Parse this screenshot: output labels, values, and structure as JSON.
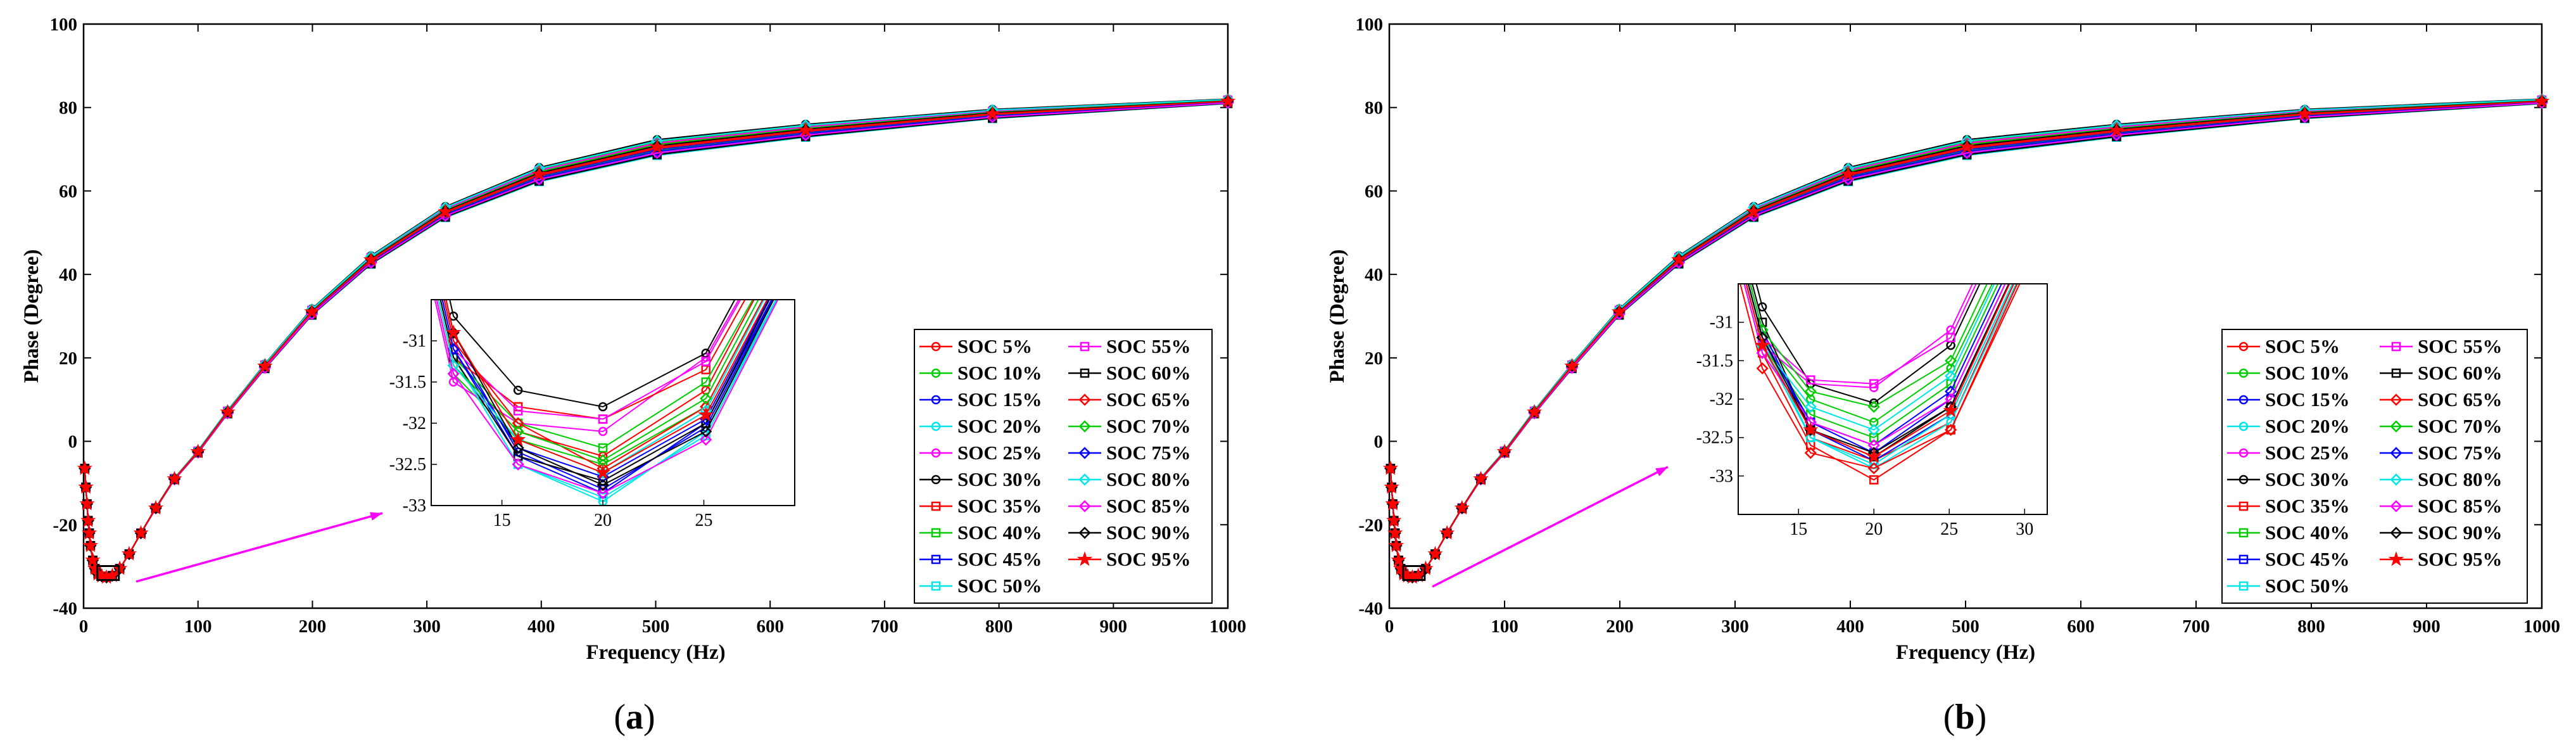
{
  "chart_data": [
    {
      "type": "line",
      "panel_label": "(a)",
      "panel_letter": "a",
      "title": "",
      "xlabel": "Frequency (Hz)",
      "ylabel": "Phase (Degree)",
      "xlim": [
        0,
        1000
      ],
      "ylim": [
        -40,
        100
      ],
      "xticks": [
        0,
        100,
        200,
        300,
        400,
        500,
        600,
        700,
        800,
        900,
        1000
      ],
      "yticks": [
        -40,
        -20,
        0,
        20,
        40,
        60,
        80,
        100
      ],
      "x": [
        1,
        2,
        3,
        4,
        5,
        6,
        8,
        10,
        12.6,
        15.8,
        20,
        25.1,
        31.6,
        39.8,
        50.1,
        63.1,
        79.4,
        100,
        125.9,
        158.5,
        199.5,
        251.2,
        316.2,
        398.1,
        501.2,
        631,
        794.3,
        1000
      ],
      "base_y": [
        -6.5,
        -11,
        -15,
        -19,
        -22,
        -25,
        -28.5,
        -30.5,
        -31.8,
        -32.3,
        -32.6,
        -32.2,
        -30.5,
        -27,
        -22,
        -16,
        -9,
        -2.5,
        7,
        18,
        31,
        43.5,
        55,
        64,
        70.5,
        74.5,
        78.5,
        81.5
      ],
      "series": [
        {
          "name": "SOC 5%",
          "color": "#ff0000",
          "marker": "circle",
          "offset": 0.8
        },
        {
          "name": "SOC 10%",
          "color": "#00cc00",
          "marker": "circle",
          "offset": 1.3
        },
        {
          "name": "SOC 15%",
          "color": "#0000ff",
          "marker": "circle",
          "offset": -0.6
        },
        {
          "name": "SOC 20%",
          "color": "#00e5e5",
          "marker": "circle",
          "offset": -1.2
        },
        {
          "name": "SOC 25%",
          "color": "#ff00ff",
          "marker": "circle",
          "offset": 0.2
        },
        {
          "name": "SOC 30%",
          "color": "#000000",
          "marker": "circle",
          "offset": 1.8
        },
        {
          "name": "SOC 35%",
          "color": "#ff0000",
          "marker": "square",
          "offset": 0.5
        },
        {
          "name": "SOC 40%",
          "color": "#00cc00",
          "marker": "square",
          "offset": -0.9
        },
        {
          "name": "SOC 45%",
          "color": "#0000ff",
          "marker": "square",
          "offset": -1.6
        },
        {
          "name": "SOC 50%",
          "color": "#00e5e5",
          "marker": "square",
          "offset": -2.0
        },
        {
          "name": "SOC 55%",
          "color": "#ff00ff",
          "marker": "square",
          "offset": 1.0
        },
        {
          "name": "SOC 60%",
          "color": "#000000",
          "marker": "square",
          "offset": -1.8
        },
        {
          "name": "SOC 65%",
          "color": "#ff0000",
          "marker": "diamond",
          "offset": -0.3
        },
        {
          "name": "SOC 70%",
          "color": "#00cc00",
          "marker": "diamond",
          "offset": 0.6
        },
        {
          "name": "SOC 75%",
          "color": "#0000ff",
          "marker": "diamond",
          "offset": -1.0
        },
        {
          "name": "SOC 80%",
          "color": "#00e5e5",
          "marker": "diamond",
          "offset": 1.5
        },
        {
          "name": "SOC 85%",
          "color": "#ff00ff",
          "marker": "diamond",
          "offset": -1.4
        },
        {
          "name": "SOC 90%",
          "color": "#000000",
          "marker": "diamond",
          "offset": 0.3
        },
        {
          "name": "SOC 95%",
          "color": "#ff0000",
          "marker": "star",
          "offset": 0.0
        }
      ],
      "legend_location": "lower-right, two columns",
      "inset": {
        "xlim": [
          11.5,
          29.5
        ],
        "ylim": [
          -33,
          -30.5
        ],
        "xticks": [
          15,
          20,
          25
        ],
        "yticks": [
          -33,
          -32.5,
          -32,
          -31.5,
          -31
        ],
        "zoom_region_x": [
          12,
          25
        ],
        "zoom_region_y": [
          -33,
          -31.5
        ],
        "x": [
          12.6,
          15.8,
          20,
          25.1,
          31.6
        ],
        "series_y": [
          [
            -31.3,
            -32.1,
            -32.4,
            -31.6,
            -28.6
          ],
          [
            -31.4,
            -32.2,
            -32.5,
            -31.8,
            -28.8
          ],
          [
            -31.0,
            -32.35,
            -32.8,
            -32.05,
            -29.0
          ],
          [
            -31.2,
            -32.5,
            -32.95,
            -32.1,
            -29.1
          ],
          [
            -31.5,
            -32.0,
            -32.1,
            -31.2,
            -28.4
          ],
          [
            -30.7,
            -31.6,
            -31.8,
            -31.15,
            -28.2
          ],
          [
            -31.2,
            -31.8,
            -31.95,
            -31.35,
            -28.5
          ],
          [
            -31.2,
            -32.0,
            -32.3,
            -31.5,
            -28.7
          ],
          [
            -31.1,
            -32.4,
            -32.85,
            -32.0,
            -29.0
          ],
          [
            -31.2,
            -32.5,
            -32.9,
            -32.15,
            -29.1
          ],
          [
            -31.1,
            -31.85,
            -31.95,
            -31.25,
            -28.4
          ],
          [
            -31.2,
            -32.4,
            -32.7,
            -32.0,
            -28.9
          ],
          [
            -31.0,
            -32.0,
            -32.55,
            -31.8,
            -28.8
          ],
          [
            -31.3,
            -32.1,
            -32.45,
            -31.7,
            -28.7
          ],
          [
            -31.1,
            -32.3,
            -32.65,
            -31.95,
            -28.9
          ],
          [
            -31.3,
            -32.2,
            -32.6,
            -31.85,
            -28.8
          ],
          [
            -31.4,
            -32.5,
            -32.85,
            -32.2,
            -29.1
          ],
          [
            -30.9,
            -32.3,
            -32.75,
            -32.1,
            -29.0
          ],
          [
            -30.9,
            -32.2,
            -32.6,
            -31.9,
            -28.9
          ]
        ]
      }
    },
    {
      "type": "line",
      "panel_label": "(b)",
      "panel_letter": "b",
      "title": "",
      "xlabel": "Frequency (Hz)",
      "ylabel": "Phase (Degree)",
      "xlim": [
        0,
        1000
      ],
      "ylim": [
        -40,
        100
      ],
      "xticks": [
        0,
        100,
        200,
        300,
        400,
        500,
        600,
        700,
        800,
        900,
        1000
      ],
      "yticks": [
        -40,
        -20,
        0,
        20,
        40,
        60,
        80,
        100
      ],
      "x": [
        1,
        2,
        3,
        4,
        5,
        6,
        8,
        10,
        12.6,
        15.8,
        20,
        25.1,
        31.6,
        39.8,
        50.1,
        63.1,
        79.4,
        100,
        125.9,
        158.5,
        199.5,
        251.2,
        316.2,
        398.1,
        501.2,
        631,
        794.3,
        1000
      ],
      "base_y": [
        -6.5,
        -11,
        -15,
        -19,
        -22,
        -25,
        -28.5,
        -30.5,
        -31.8,
        -32.3,
        -32.6,
        -32.2,
        -30.5,
        -27,
        -22,
        -16,
        -9,
        -2.5,
        7,
        18,
        31,
        43.5,
        55,
        64,
        70.5,
        74.5,
        78.5,
        81.5
      ],
      "series": [
        {
          "name": "SOC 5%",
          "color": "#ff0000",
          "marker": "circle",
          "offset": 0.8
        },
        {
          "name": "SOC 10%",
          "color": "#00cc00",
          "marker": "circle",
          "offset": 1.3
        },
        {
          "name": "SOC 15%",
          "color": "#0000ff",
          "marker": "circle",
          "offset": -0.6
        },
        {
          "name": "SOC 20%",
          "color": "#00e5e5",
          "marker": "circle",
          "offset": -1.2
        },
        {
          "name": "SOC 25%",
          "color": "#ff00ff",
          "marker": "circle",
          "offset": 0.2
        },
        {
          "name": "SOC 30%",
          "color": "#000000",
          "marker": "circle",
          "offset": 1.8
        },
        {
          "name": "SOC 35%",
          "color": "#ff0000",
          "marker": "square",
          "offset": 0.5
        },
        {
          "name": "SOC 40%",
          "color": "#00cc00",
          "marker": "square",
          "offset": -0.9
        },
        {
          "name": "SOC 45%",
          "color": "#0000ff",
          "marker": "square",
          "offset": -1.6
        },
        {
          "name": "SOC 50%",
          "color": "#00e5e5",
          "marker": "square",
          "offset": -2.0
        },
        {
          "name": "SOC 55%",
          "color": "#ff00ff",
          "marker": "square",
          "offset": 1.0
        },
        {
          "name": "SOC 60%",
          "color": "#000000",
          "marker": "square",
          "offset": -1.8
        },
        {
          "name": "SOC 65%",
          "color": "#ff0000",
          "marker": "diamond",
          "offset": -0.3
        },
        {
          "name": "SOC 70%",
          "color": "#00cc00",
          "marker": "diamond",
          "offset": 0.6
        },
        {
          "name": "SOC 75%",
          "color": "#0000ff",
          "marker": "diamond",
          "offset": -1.0
        },
        {
          "name": "SOC 80%",
          "color": "#00e5e5",
          "marker": "diamond",
          "offset": 1.5
        },
        {
          "name": "SOC 85%",
          "color": "#ff00ff",
          "marker": "diamond",
          "offset": -1.4
        },
        {
          "name": "SOC 90%",
          "color": "#000000",
          "marker": "diamond",
          "offset": 0.3
        },
        {
          "name": "SOC 95%",
          "color": "#ff0000",
          "marker": "star",
          "offset": 0.0
        }
      ],
      "legend_location": "lower-right, two columns",
      "inset": {
        "xlim": [
          11,
          31.5
        ],
        "ylim": [
          -33.5,
          -30.5
        ],
        "xticks": [
          15,
          20,
          25,
          30
        ],
        "yticks": [
          -33,
          -32.5,
          -32,
          -31.5,
          -31
        ],
        "zoom_region_x": [
          12,
          25
        ],
        "zoom_region_y": [
          -33,
          -31.5
        ],
        "x": [
          12.6,
          15.8,
          20,
          25.1,
          31.6
        ],
        "series_y": [
          [
            -31.3,
            -32.5,
            -32.8,
            -32.3,
            -29.5
          ],
          [
            -31.2,
            -32.0,
            -32.3,
            -31.6,
            -29.0
          ],
          [
            -31.1,
            -32.4,
            -32.8,
            -32.2,
            -29.5
          ],
          [
            -31.2,
            -32.5,
            -32.9,
            -32.3,
            -29.6
          ],
          [
            -31.3,
            -31.8,
            -31.85,
            -31.1,
            -28.4
          ],
          [
            -30.8,
            -31.8,
            -32.05,
            -31.3,
            -28.6
          ],
          [
            -31.4,
            -32.6,
            -33.05,
            -32.4,
            -29.7
          ],
          [
            -31.3,
            -32.2,
            -32.5,
            -31.8,
            -29.1
          ],
          [
            -31.2,
            -32.3,
            -32.7,
            -32.0,
            -29.3
          ],
          [
            -31.3,
            -32.5,
            -32.85,
            -32.2,
            -29.5
          ],
          [
            -31.2,
            -31.75,
            -31.8,
            -31.2,
            -28.5
          ],
          [
            -31.0,
            -32.4,
            -32.75,
            -32.1,
            -29.4
          ],
          [
            -31.6,
            -32.7,
            -32.9,
            -32.4,
            -29.6
          ],
          [
            -31.1,
            -31.9,
            -32.1,
            -31.5,
            -28.8
          ],
          [
            -31.2,
            -32.3,
            -32.6,
            -31.9,
            -29.2
          ],
          [
            -31.3,
            -32.1,
            -32.4,
            -31.7,
            -29.0
          ],
          [
            -31.4,
            -32.3,
            -32.6,
            -32.0,
            -29.3
          ],
          [
            -31.2,
            -32.4,
            -32.7,
            -32.1,
            -29.4
          ],
          [
            -31.3,
            -32.4,
            -32.75,
            -32.15,
            -29.4
          ]
        ]
      }
    }
  ]
}
